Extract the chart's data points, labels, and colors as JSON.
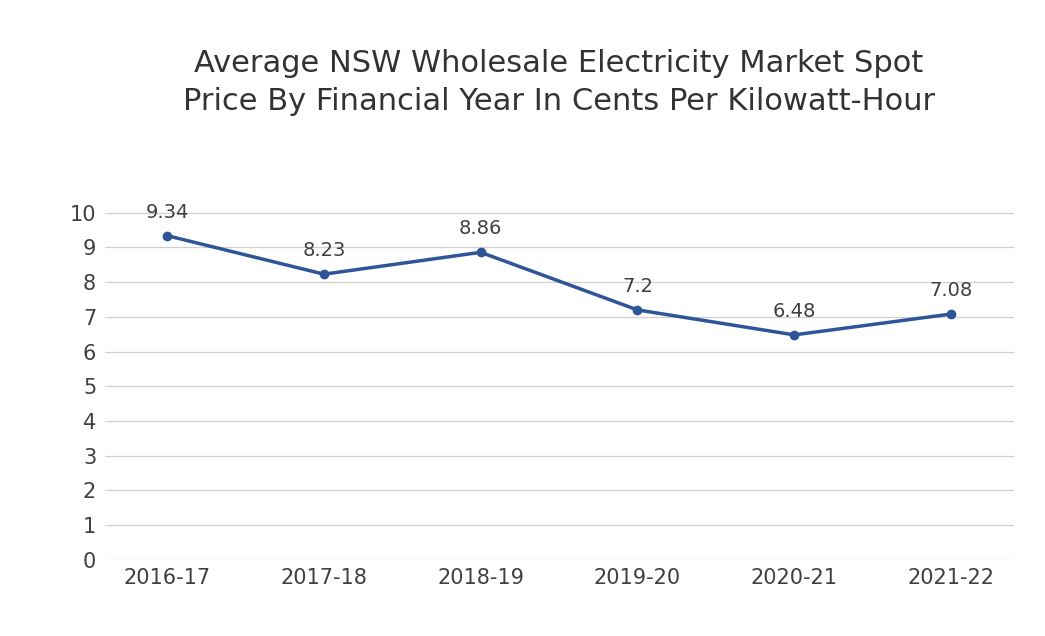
{
  "title": "Average NSW Wholesale Electricity Market Spot\nPrice By Financial Year In Cents Per Kilowatt-Hour",
  "categories": [
    "2016-17",
    "2017-18",
    "2018-19",
    "2019-20",
    "2020-21",
    "2021-22"
  ],
  "values": [
    9.34,
    8.23,
    8.86,
    7.2,
    6.48,
    7.08
  ],
  "labels": [
    "9.34",
    "8.23",
    "8.86",
    "7.2",
    "6.48",
    "7.08"
  ],
  "line_color": "#2E5598",
  "background_color": "#ffffff",
  "ylim": [
    0,
    11
  ],
  "yticks": [
    0,
    1,
    2,
    3,
    4,
    5,
    6,
    7,
    8,
    9,
    10
  ],
  "grid_color": "#d0d0d0",
  "title_fontsize": 22,
  "label_fontsize": 14,
  "tick_fontsize": 15,
  "line_width": 2.5,
  "marker_size": 6
}
